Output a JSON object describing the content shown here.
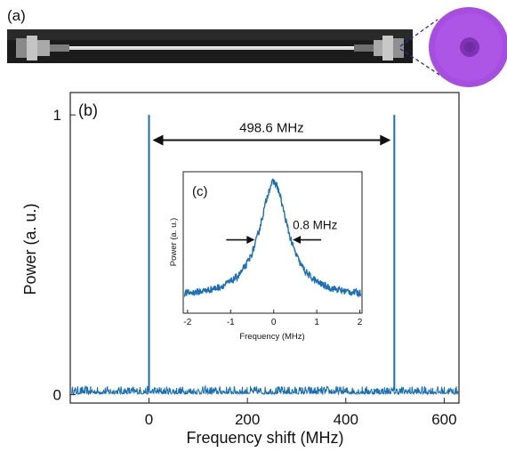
{
  "panel_labels": {
    "a": "(a)",
    "b": "(b)",
    "c": "(c)"
  },
  "colors": {
    "trace": "#1a6fb5",
    "axis": "#222222",
    "fiber": "#d8d8d8",
    "dashed": "#2a2aa0",
    "facet": "#a848e0"
  },
  "photo": {
    "description_icon": "fiber-photo",
    "zoom_icon": "fiber-end-facet-icon"
  },
  "chart_data": [
    {
      "type": "line",
      "title": "",
      "xlabel": "Frequency shift (MHz)",
      "ylabel": "Power (a. u.)",
      "xlim": [
        -160,
        630
      ],
      "ylim": [
        -0.03,
        1.08
      ],
      "xticks": [
        0,
        200,
        400,
        600
      ],
      "xtick_labels": [
        "0",
        "200",
        "400",
        "600"
      ],
      "yticks": [
        0,
        1
      ],
      "ytick_labels": [
        "0",
        "1"
      ],
      "noise_floor": 0.015,
      "peaks": [
        {
          "x": 0,
          "y": 1.0
        },
        {
          "x": 498.6,
          "y": 1.0
        }
      ],
      "annotation": {
        "text": "498.6 MHz",
        "x_start": 0,
        "x_end": 498.6,
        "y": 0.91
      },
      "grid": false,
      "legend": "none"
    },
    {
      "type": "line",
      "title": "",
      "xlabel": "Frequency (MHz)",
      "ylabel": "Power (a. u.)",
      "xlim": [
        -2.1,
        2.05
      ],
      "ylim": [
        0,
        1.08
      ],
      "xticks": [
        -2,
        -1,
        0,
        1,
        2
      ],
      "xtick_labels": [
        "-2",
        "-1",
        "0",
        "1",
        "2"
      ],
      "peak_center": 0.0,
      "peak_height": 1.0,
      "baseline": 0.12,
      "fwhm": 0.8,
      "annotation": {
        "text": "0.8 MHz"
      },
      "grid": false,
      "legend": "none"
    }
  ]
}
